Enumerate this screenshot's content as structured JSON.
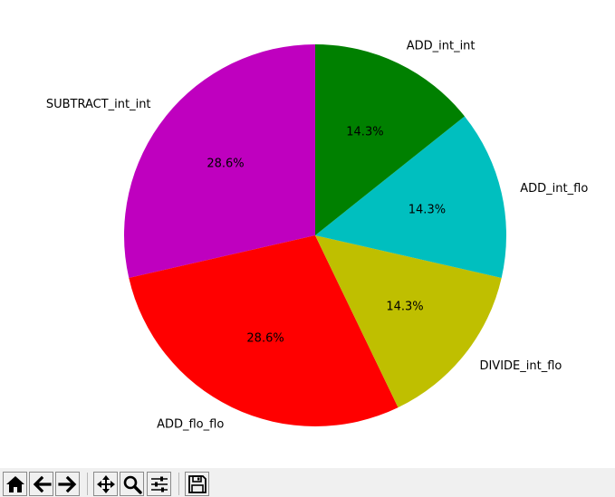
{
  "chart_data": {
    "type": "pie",
    "title": "",
    "slices": [
      {
        "label": "SUBTRACT_int_int",
        "value": 28.6,
        "pct_label": "28.6%",
        "color": "#bf00bf"
      },
      {
        "label": "ADD_flo_flo",
        "value": 28.6,
        "pct_label": "28.6%",
        "color": "#ff0000"
      },
      {
        "label": "DIVIDE_int_flo",
        "value": 14.3,
        "pct_label": "14.3%",
        "color": "#bfbf00"
      },
      {
        "label": "ADD_int_flo",
        "value": 14.3,
        "pct_label": "14.3%",
        "color": "#00bfbf"
      },
      {
        "label": "ADD_int_int",
        "value": 14.3,
        "pct_label": "14.3%",
        "color": "#008000"
      }
    ],
    "start_angle_deg": 90,
    "direction": "counterclockwise",
    "legend": "none"
  },
  "toolbar": {
    "buttons": [
      {
        "name": "home-button",
        "icon": "home-icon"
      },
      {
        "name": "back-button",
        "icon": "arrow-left-icon"
      },
      {
        "name": "forward-button",
        "icon": "arrow-right-icon"
      },
      {
        "name": "pan-button",
        "icon": "move-icon"
      },
      {
        "name": "zoom-button",
        "icon": "magnifier-icon"
      },
      {
        "name": "configure-subplots-button",
        "icon": "sliders-icon"
      },
      {
        "name": "save-button",
        "icon": "floppy-disk-icon"
      }
    ]
  }
}
